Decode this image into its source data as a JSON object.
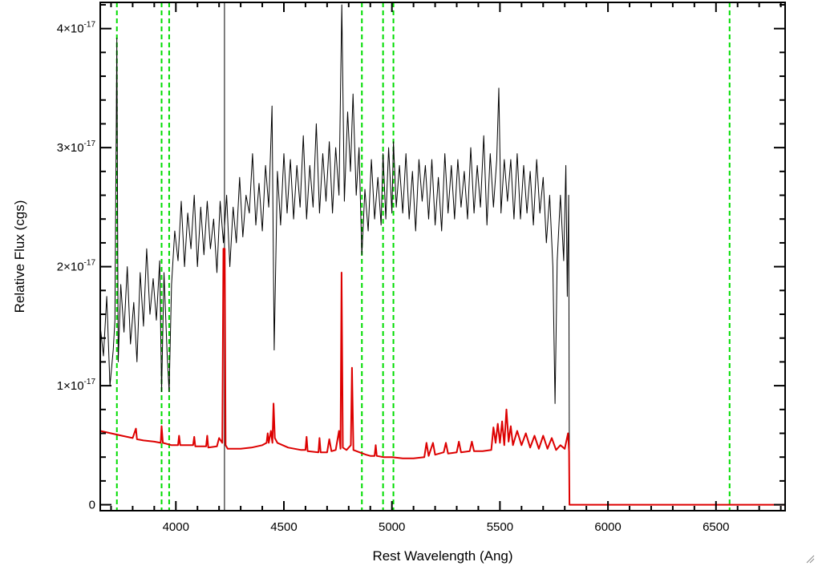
{
  "chart_data": {
    "type": "line",
    "title": "",
    "xlabel": "Rest Wavelength (Ang)",
    "ylabel": "Relative Flux (cgs)",
    "xlim": [
      3650,
      6820
    ],
    "ylim": [
      -5e-19,
      4.22e-17
    ],
    "x_ticks": [
      {
        "value": 4000,
        "label": "4000"
      },
      {
        "value": 4500,
        "label": "4500"
      },
      {
        "value": 5000,
        "label": "5000"
      },
      {
        "value": 5500,
        "label": "5500"
      },
      {
        "value": 6000,
        "label": "6000"
      },
      {
        "value": 6500,
        "label": "6500"
      }
    ],
    "y_ticks": [
      {
        "value": 0,
        "mantissa": "0",
        "exponent": ""
      },
      {
        "value": 1e-17,
        "mantissa": "1×10",
        "exponent": "-17"
      },
      {
        "value": 2e-17,
        "mantissa": "2×10",
        "exponent": "-17"
      },
      {
        "value": 3e-17,
        "mantissa": "3×10",
        "exponent": "-17"
      },
      {
        "value": 4e-17,
        "mantissa": "4×10",
        "exponent": "-17"
      }
    ],
    "grid": false,
    "legend": "none",
    "colors": {
      "spectrum": "#000000",
      "model": "#dd0000",
      "lines": "#00dd00",
      "axis": "#000000"
    },
    "line_markers_x": [
      3727,
      3934,
      3969,
      4861,
      4959,
      5007,
      6563
    ],
    "vertical_line_x": 4225,
    "series": [
      {
        "role": "spectrum",
        "color": "#000000",
        "points": [
          [
            3650,
            1.5e-17
          ],
          [
            3665,
            1.25e-17
          ],
          [
            3680,
            1.75e-17
          ],
          [
            3695,
            1e-17
          ],
          [
            3710,
            1.3e-17
          ],
          [
            3718,
            1.55e-17
          ],
          [
            3727,
            3.92e-17
          ],
          [
            3733,
            1.2e-17
          ],
          [
            3745,
            1.85e-17
          ],
          [
            3760,
            1.45e-17
          ],
          [
            3775,
            2e-17
          ],
          [
            3790,
            1.35e-17
          ],
          [
            3805,
            1.7e-17
          ],
          [
            3820,
            1.2e-17
          ],
          [
            3835,
            1.95e-17
          ],
          [
            3850,
            1.5e-17
          ],
          [
            3865,
            2.15e-17
          ],
          [
            3880,
            1.6e-17
          ],
          [
            3895,
            1.9e-17
          ],
          [
            3910,
            1.55e-17
          ],
          [
            3925,
            2.05e-17
          ],
          [
            3934,
            9.5e-18
          ],
          [
            3945,
            1.95e-17
          ],
          [
            3960,
            1.25e-17
          ],
          [
            3969,
            9.5e-18
          ],
          [
            3980,
            1.85e-17
          ],
          [
            3995,
            2.3e-17
          ],
          [
            4010,
            2.05e-17
          ],
          [
            4025,
            2.55e-17
          ],
          [
            4040,
            2e-17
          ],
          [
            4055,
            2.45e-17
          ],
          [
            4070,
            2.15e-17
          ],
          [
            4085,
            2.6e-17
          ],
          [
            4100,
            2e-17
          ],
          [
            4115,
            2.5e-17
          ],
          [
            4130,
            2.1e-17
          ],
          [
            4145,
            2.55e-17
          ],
          [
            4160,
            2.15e-17
          ],
          [
            4175,
            2.4e-17
          ],
          [
            4190,
            1.95e-17
          ],
          [
            4205,
            2.55e-17
          ],
          [
            4220,
            2.2e-17
          ],
          [
            4235,
            2.6e-17
          ],
          [
            4250,
            2e-17
          ],
          [
            4265,
            2.5e-17
          ],
          [
            4280,
            2.2e-17
          ],
          [
            4295,
            2.75e-17
          ],
          [
            4310,
            2.25e-17
          ],
          [
            4325,
            2.6e-17
          ],
          [
            4340,
            2.45e-17
          ],
          [
            4355,
            2.95e-17
          ],
          [
            4370,
            2.35e-17
          ],
          [
            4385,
            2.7e-17
          ],
          [
            4400,
            2.3e-17
          ],
          [
            4415,
            2.85e-17
          ],
          [
            4430,
            2.5e-17
          ],
          [
            4445,
            3.35e-17
          ],
          [
            4455,
            1.3e-17
          ],
          [
            4470,
            2.8e-17
          ],
          [
            4485,
            2.35e-17
          ],
          [
            4500,
            2.95e-17
          ],
          [
            4515,
            2.45e-17
          ],
          [
            4530,
            2.9e-17
          ],
          [
            4545,
            2.4e-17
          ],
          [
            4560,
            2.85e-17
          ],
          [
            4575,
            2.5e-17
          ],
          [
            4590,
            3.1e-17
          ],
          [
            4605,
            2.4e-17
          ],
          [
            4620,
            2.85e-17
          ],
          [
            4635,
            2.5e-17
          ],
          [
            4650,
            3.2e-17
          ],
          [
            4665,
            2.45e-17
          ],
          [
            4680,
            2.95e-17
          ],
          [
            4695,
            2.55e-17
          ],
          [
            4710,
            3.05e-17
          ],
          [
            4725,
            2.45e-17
          ],
          [
            4740,
            3e-17
          ],
          [
            4755,
            2.6e-17
          ],
          [
            4768,
            4.2e-17
          ],
          [
            4780,
            2.55e-17
          ],
          [
            4795,
            3.3e-17
          ],
          [
            4808,
            2.8e-17
          ],
          [
            4820,
            3.45e-17
          ],
          [
            4835,
            2.6e-17
          ],
          [
            4848,
            3e-17
          ],
          [
            4861,
            2.1e-17
          ],
          [
            4875,
            2.65e-17
          ],
          [
            4890,
            2.3e-17
          ],
          [
            4905,
            2.9e-17
          ],
          [
            4920,
            2.4e-17
          ],
          [
            4935,
            2.75e-17
          ],
          [
            4950,
            2.35e-17
          ],
          [
            4959,
            2.95e-17
          ],
          [
            4972,
            2.4e-17
          ],
          [
            4985,
            3e-17
          ],
          [
            5000,
            2.45e-17
          ],
          [
            5007,
            3.05e-17
          ],
          [
            5020,
            2.5e-17
          ],
          [
            5035,
            2.85e-17
          ],
          [
            5050,
            2.45e-17
          ],
          [
            5065,
            2.95e-17
          ],
          [
            5080,
            2.4e-17
          ],
          [
            5095,
            2.8e-17
          ],
          [
            5110,
            2.3e-17
          ],
          [
            5125,
            2.9e-17
          ],
          [
            5140,
            2.55e-17
          ],
          [
            5155,
            2.85e-17
          ],
          [
            5170,
            2.4e-17
          ],
          [
            5185,
            2.9e-17
          ],
          [
            5200,
            2.35e-17
          ],
          [
            5215,
            2.75e-17
          ],
          [
            5230,
            2.3e-17
          ],
          [
            5245,
            2.95e-17
          ],
          [
            5260,
            2.45e-17
          ],
          [
            5275,
            2.85e-17
          ],
          [
            5290,
            2.4e-17
          ],
          [
            5305,
            2.9e-17
          ],
          [
            5320,
            2.5e-17
          ],
          [
            5335,
            2.8e-17
          ],
          [
            5350,
            2.4e-17
          ],
          [
            5365,
            3e-17
          ],
          [
            5380,
            2.45e-17
          ],
          [
            5395,
            2.85e-17
          ],
          [
            5410,
            2.5e-17
          ],
          [
            5425,
            3.1e-17
          ],
          [
            5440,
            2.35e-17
          ],
          [
            5455,
            2.95e-17
          ],
          [
            5470,
            2.5e-17
          ],
          [
            5485,
            2.9e-17
          ],
          [
            5495,
            3.5e-17
          ],
          [
            5505,
            2.45e-17
          ],
          [
            5520,
            2.9e-17
          ],
          [
            5535,
            2.55e-17
          ],
          [
            5550,
            2.9e-17
          ],
          [
            5565,
            2.4e-17
          ],
          [
            5580,
            2.95e-17
          ],
          [
            5595,
            2.4e-17
          ],
          [
            5610,
            2.85e-17
          ],
          [
            5625,
            2.45e-17
          ],
          [
            5640,
            2.8e-17
          ],
          [
            5655,
            2.35e-17
          ],
          [
            5670,
            2.9e-17
          ],
          [
            5685,
            2.45e-17
          ],
          [
            5700,
            2.75e-17
          ],
          [
            5715,
            2.2e-17
          ],
          [
            5730,
            2.6e-17
          ],
          [
            5745,
            2e-17
          ],
          [
            5755,
            8.5e-18
          ],
          [
            5765,
            2.05e-17
          ],
          [
            5780,
            2.6e-17
          ],
          [
            5795,
            2.05e-17
          ],
          [
            5805,
            2.85e-17
          ],
          [
            5812,
            1.75e-17
          ],
          [
            5818,
            2.6e-17
          ],
          [
            5822,
            0.0
          ]
        ]
      },
      {
        "role": "model",
        "color": "#dd0000",
        "points": [
          [
            3650,
            6.2e-18
          ],
          [
            3700,
            6e-18
          ],
          [
            3750,
            5.8e-18
          ],
          [
            3800,
            5.6e-18
          ],
          [
            3815,
            6.4e-18
          ],
          [
            3820,
            5.5e-18
          ],
          [
            3850,
            5.4e-18
          ],
          [
            3900,
            5.3e-18
          ],
          [
            3930,
            5.2e-18
          ],
          [
            3934,
            6.6e-18
          ],
          [
            3940,
            5.2e-18
          ],
          [
            3980,
            5e-18
          ],
          [
            4010,
            5e-18
          ],
          [
            4015,
            5.8e-18
          ],
          [
            4020,
            5e-18
          ],
          [
            4080,
            5e-18
          ],
          [
            4085,
            5.7e-18
          ],
          [
            4090,
            4.9e-18
          ],
          [
            4140,
            4.9e-18
          ],
          [
            4145,
            5.8e-18
          ],
          [
            4150,
            4.8e-18
          ],
          [
            4190,
            4.9e-18
          ],
          [
            4200,
            5.6e-18
          ],
          [
            4215,
            5.2e-18
          ],
          [
            4220,
            2.15e-17
          ],
          [
            4226,
            2.15e-17
          ],
          [
            4230,
            5e-18
          ],
          [
            4240,
            4.7e-18
          ],
          [
            4300,
            4.7e-18
          ],
          [
            4350,
            4.8e-18
          ],
          [
            4400,
            5e-18
          ],
          [
            4420,
            5.2e-18
          ],
          [
            4425,
            6e-18
          ],
          [
            4430,
            5.2e-18
          ],
          [
            4440,
            6.2e-18
          ],
          [
            4447,
            5.2e-18
          ],
          [
            4452,
            8.5e-18
          ],
          [
            4458,
            5.6e-18
          ],
          [
            4470,
            5.2e-18
          ],
          [
            4520,
            4.8e-18
          ],
          [
            4580,
            4.6e-18
          ],
          [
            4600,
            4.6e-18
          ],
          [
            4605,
            5.7e-18
          ],
          [
            4610,
            4.5e-18
          ],
          [
            4660,
            4.4e-18
          ],
          [
            4665,
            5.6e-18
          ],
          [
            4670,
            4.4e-18
          ],
          [
            4700,
            4.4e-18
          ],
          [
            4710,
            5.5e-18
          ],
          [
            4720,
            4.5e-18
          ],
          [
            4740,
            4.6e-18
          ],
          [
            4755,
            6.2e-18
          ],
          [
            4762,
            4.7e-18
          ],
          [
            4767,
            1.95e-17
          ],
          [
            4773,
            4.8e-18
          ],
          [
            4790,
            4.6e-18
          ],
          [
            4810,
            5e-18
          ],
          [
            4815,
            1.15e-17
          ],
          [
            4822,
            4.6e-18
          ],
          [
            4850,
            4.4e-18
          ],
          [
            4880,
            4.2e-18
          ],
          [
            4900,
            4.1e-18
          ],
          [
            4920,
            4.1e-18
          ],
          [
            4925,
            5e-18
          ],
          [
            4930,
            4.1e-18
          ],
          [
            4960,
            4e-18
          ],
          [
            5000,
            4e-18
          ],
          [
            5050,
            3.9e-18
          ],
          [
            5100,
            3.9e-18
          ],
          [
            5150,
            4e-18
          ],
          [
            5160,
            5.2e-18
          ],
          [
            5170,
            4.1e-18
          ],
          [
            5190,
            5.2e-18
          ],
          [
            5200,
            4.2e-18
          ],
          [
            5240,
            4.4e-18
          ],
          [
            5250,
            5.2e-18
          ],
          [
            5260,
            4.3e-18
          ],
          [
            5300,
            4.4e-18
          ],
          [
            5310,
            5.3e-18
          ],
          [
            5320,
            4.4e-18
          ],
          [
            5360,
            4.5e-18
          ],
          [
            5370,
            5.3e-18
          ],
          [
            5380,
            4.5e-18
          ],
          [
            5420,
            4.5e-18
          ],
          [
            5460,
            4.6e-18
          ],
          [
            5470,
            6.5e-18
          ],
          [
            5480,
            5.2e-18
          ],
          [
            5490,
            6.8e-18
          ],
          [
            5500,
            5.2e-18
          ],
          [
            5510,
            7e-18
          ],
          [
            5520,
            5e-18
          ],
          [
            5530,
            8e-18
          ],
          [
            5540,
            5.3e-18
          ],
          [
            5550,
            6.6e-18
          ],
          [
            5560,
            5e-18
          ],
          [
            5580,
            6.2e-18
          ],
          [
            5600,
            5e-18
          ],
          [
            5620,
            6e-18
          ],
          [
            5640,
            4.8e-18
          ],
          [
            5660,
            5.8e-18
          ],
          [
            5680,
            4.7e-18
          ],
          [
            5700,
            5.8e-18
          ],
          [
            5720,
            4.7e-18
          ],
          [
            5740,
            5.6e-18
          ],
          [
            5760,
            4.6e-18
          ],
          [
            5780,
            5e-18
          ],
          [
            5800,
            4.7e-18
          ],
          [
            5815,
            6e-18
          ],
          [
            5820,
            4.5e-18
          ],
          [
            5822,
            0.0
          ],
          [
            6820,
            0.0
          ]
        ]
      }
    ]
  }
}
